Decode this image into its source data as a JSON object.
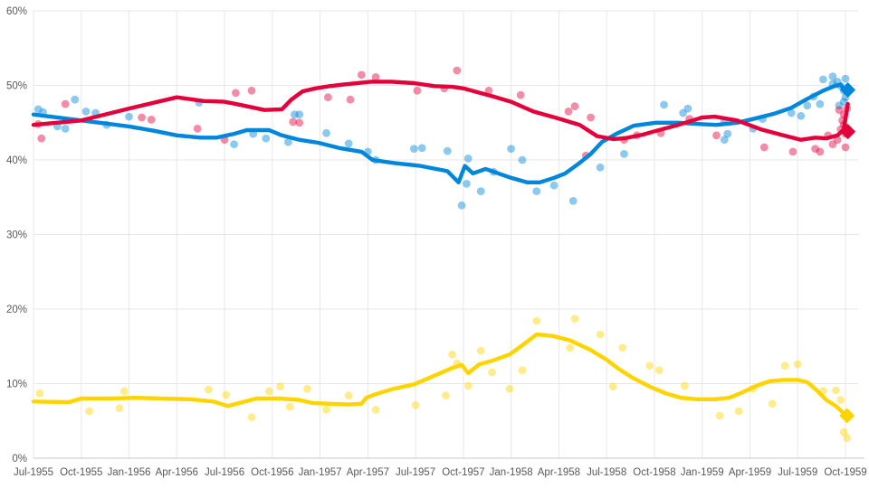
{
  "chart_data": {
    "type": "scatter",
    "title": "",
    "xlabel": "",
    "ylabel": "",
    "x_unit": "months_since_jul_1955",
    "x_range_months": [
      0,
      51
    ],
    "ylim": [
      0,
      60
    ],
    "grid": true,
    "legend": "none",
    "colors": {
      "background": "#ffffff",
      "gridline": "#e7e7e7",
      "axis_line": "#c9c9c9",
      "tick_label": "#595959",
      "blue": "#0087dc",
      "red": "#e4003b",
      "yellow": "#ffd400"
    },
    "y_ticks": [
      {
        "value": 0,
        "label": "0%"
      },
      {
        "value": 10,
        "label": "10%"
      },
      {
        "value": 20,
        "label": "20%"
      },
      {
        "value": 30,
        "label": "30%"
      },
      {
        "value": 40,
        "label": "40%"
      },
      {
        "value": 50,
        "label": "50%"
      },
      {
        "value": 60,
        "label": "60%"
      }
    ],
    "x_ticks": [
      {
        "month": 0,
        "label": "Jul-1955"
      },
      {
        "month": 3,
        "label": "Oct-1955"
      },
      {
        "month": 6,
        "label": "Jan-1956"
      },
      {
        "month": 9,
        "label": "Apr-1956"
      },
      {
        "month": 12,
        "label": "Jul-1956"
      },
      {
        "month": 15,
        "label": "Oct-1956"
      },
      {
        "month": 18,
        "label": "Jan-1957"
      },
      {
        "month": 21,
        "label": "Apr-1957"
      },
      {
        "month": 24,
        "label": "Jul-1957"
      },
      {
        "month": 27,
        "label": "Oct-1957"
      },
      {
        "month": 30,
        "label": "Jan-1958"
      },
      {
        "month": 33,
        "label": "Apr-1958"
      },
      {
        "month": 36,
        "label": "Jul-1958"
      },
      {
        "month": 39,
        "label": "Oct-1958"
      },
      {
        "month": 42,
        "label": "Jan-1959"
      },
      {
        "month": 45,
        "label": "Apr-1959"
      },
      {
        "month": 48,
        "label": "Jul-1959"
      },
      {
        "month": 51,
        "label": "Oct-1959"
      }
    ],
    "series": [
      {
        "name": "blue",
        "color": "#0087dc",
        "trend": [
          [
            0,
            46.1
          ],
          [
            3,
            45.3
          ],
          [
            6,
            44.5
          ],
          [
            7.6,
            43.9
          ],
          [
            9,
            43.3
          ],
          [
            10.5,
            43.0
          ],
          [
            11.5,
            43.0
          ],
          [
            12.6,
            43.5
          ],
          [
            13.4,
            44.0
          ],
          [
            14.8,
            44.0
          ],
          [
            15.6,
            43.3
          ],
          [
            16.7,
            42.7
          ],
          [
            17.9,
            42.3
          ],
          [
            19.2,
            41.6
          ],
          [
            20.6,
            41.1
          ],
          [
            21.3,
            40.0
          ],
          [
            22.6,
            39.6
          ],
          [
            24.3,
            39.2
          ],
          [
            26.0,
            38.5
          ],
          [
            26.7,
            37.0
          ],
          [
            27.1,
            39.2
          ],
          [
            27.6,
            38.2
          ],
          [
            28.4,
            38.8
          ],
          [
            29.2,
            38.2
          ],
          [
            30.0,
            37.6
          ],
          [
            31.0,
            37.0
          ],
          [
            31.8,
            37.0
          ],
          [
            32.7,
            37.6
          ],
          [
            33.4,
            38.2
          ],
          [
            34.3,
            39.6
          ],
          [
            35.0,
            40.8
          ],
          [
            35.7,
            42.4
          ],
          [
            36.6,
            43.5
          ],
          [
            37.7,
            44.6
          ],
          [
            39.1,
            45.0
          ],
          [
            40.5,
            45.0
          ],
          [
            42.0,
            44.8
          ],
          [
            42.9,
            44.7
          ],
          [
            44.2,
            45.0
          ],
          [
            45.4,
            45.6
          ],
          [
            46.5,
            46.2
          ],
          [
            47.6,
            47.0
          ],
          [
            48.6,
            48.2
          ],
          [
            49.6,
            49.3
          ],
          [
            50.3,
            49.9
          ],
          [
            50.7,
            50.1
          ],
          [
            50.9,
            49.5
          ],
          [
            51.1,
            49.7
          ]
        ],
        "polls": [
          [
            0.3,
            46.8
          ],
          [
            0.6,
            46.4
          ],
          [
            1.5,
            44.5
          ],
          [
            2.0,
            44.2
          ],
          [
            2.6,
            48.1
          ],
          [
            3.3,
            46.5
          ],
          [
            3.9,
            46.3
          ],
          [
            4.6,
            44.7
          ],
          [
            6.0,
            45.8
          ],
          [
            10.4,
            47.7
          ],
          [
            12.6,
            42.1
          ],
          [
            13.8,
            43.5
          ],
          [
            14.6,
            42.9
          ],
          [
            16.0,
            42.4
          ],
          [
            16.4,
            46.1
          ],
          [
            16.7,
            46.1
          ],
          [
            18.4,
            43.6
          ],
          [
            19.8,
            42.2
          ],
          [
            21.0,
            41.1
          ],
          [
            21.5,
            40.0
          ],
          [
            23.9,
            41.5
          ],
          [
            24.4,
            41.6
          ],
          [
            26.0,
            41.2
          ],
          [
            26.9,
            33.9
          ],
          [
            27.2,
            36.8
          ],
          [
            27.3,
            40.2
          ],
          [
            28.1,
            35.8
          ],
          [
            28.9,
            38.4
          ],
          [
            30.0,
            41.5
          ],
          [
            30.7,
            40.0
          ],
          [
            31.6,
            35.8
          ],
          [
            32.7,
            36.6
          ],
          [
            33.9,
            34.5
          ],
          [
            35.6,
            39.0
          ],
          [
            37.1,
            40.8
          ],
          [
            39.6,
            47.4
          ],
          [
            40.8,
            46.3
          ],
          [
            41.1,
            46.9
          ],
          [
            43.4,
            45.1
          ],
          [
            43.4,
            42.7
          ],
          [
            43.6,
            43.5
          ],
          [
            45.2,
            44.2
          ],
          [
            45.8,
            45.5
          ],
          [
            47.6,
            46.3
          ],
          [
            48.2,
            45.9
          ],
          [
            48.6,
            47.3
          ],
          [
            49.0,
            48.5
          ],
          [
            49.4,
            47.5
          ],
          [
            49.6,
            50.8
          ],
          [
            50.2,
            50.2
          ],
          [
            50.2,
            51.2
          ],
          [
            50.5,
            50.5
          ],
          [
            50.6,
            47.3
          ],
          [
            50.7,
            49.9
          ],
          [
            50.9,
            49.3
          ],
          [
            50.9,
            47.8
          ],
          [
            51.0,
            48.4
          ],
          [
            51.0,
            50.9
          ]
        ],
        "final_result": [
          51.15,
          49.4
        ]
      },
      {
        "name": "red",
        "color": "#e4003b",
        "trend": [
          [
            0,
            44.7
          ],
          [
            3,
            45.3
          ],
          [
            6,
            46.9
          ],
          [
            9,
            48.4
          ],
          [
            10.7,
            47.9
          ],
          [
            12,
            47.8
          ],
          [
            13.2,
            47.3
          ],
          [
            14.5,
            46.7
          ],
          [
            15.6,
            46.8
          ],
          [
            16.2,
            48.1
          ],
          [
            16.9,
            49.2
          ],
          [
            17.7,
            49.6
          ],
          [
            18.6,
            49.9
          ],
          [
            19.8,
            50.2
          ],
          [
            21.2,
            50.5
          ],
          [
            22.5,
            50.5
          ],
          [
            23.9,
            50.3
          ],
          [
            25.2,
            49.9
          ],
          [
            26.3,
            49.8
          ],
          [
            27.0,
            49.6
          ],
          [
            27.7,
            49.2
          ],
          [
            28.9,
            48.5
          ],
          [
            30.0,
            47.8
          ],
          [
            31.4,
            46.5
          ],
          [
            32.9,
            45.6
          ],
          [
            34.3,
            44.7
          ],
          [
            35.4,
            43.2
          ],
          [
            36.4,
            42.8
          ],
          [
            37.1,
            42.9
          ],
          [
            38.3,
            43.4
          ],
          [
            39.1,
            43.9
          ],
          [
            40.5,
            44.7
          ],
          [
            42.0,
            45.7
          ],
          [
            42.8,
            45.8
          ],
          [
            44.2,
            45.3
          ],
          [
            45.7,
            44.1
          ],
          [
            47.1,
            43.3
          ],
          [
            48.2,
            42.7
          ],
          [
            49.1,
            43.0
          ],
          [
            49.8,
            42.9
          ],
          [
            50.5,
            43.3
          ],
          [
            50.9,
            44.1
          ],
          [
            51.15,
            47.5
          ]
        ],
        "polls": [
          [
            0.3,
            44.8
          ],
          [
            0.5,
            42.9
          ],
          [
            2.0,
            47.5
          ],
          [
            6.8,
            45.7
          ],
          [
            7.4,
            45.4
          ],
          [
            10.3,
            44.2
          ],
          [
            12.0,
            42.7
          ],
          [
            12.7,
            49.0
          ],
          [
            13.7,
            49.3
          ],
          [
            16.3,
            45.1
          ],
          [
            16.7,
            45.0
          ],
          [
            18.5,
            48.4
          ],
          [
            19.9,
            48.1
          ],
          [
            20.6,
            51.4
          ],
          [
            21.5,
            51.1
          ],
          [
            24.1,
            49.3
          ],
          [
            25.8,
            49.6
          ],
          [
            26.6,
            52.0
          ],
          [
            28.6,
            49.3
          ],
          [
            30.6,
            48.7
          ],
          [
            33.6,
            46.5
          ],
          [
            34.0,
            47.2
          ],
          [
            34.7,
            40.6
          ],
          [
            35.0,
            45.7
          ],
          [
            37.1,
            42.7
          ],
          [
            37.9,
            43.3
          ],
          [
            39.4,
            43.6
          ],
          [
            41.2,
            45.5
          ],
          [
            42.9,
            43.3
          ],
          [
            45.9,
            41.7
          ],
          [
            47.7,
            41.1
          ],
          [
            49.1,
            41.5
          ],
          [
            49.4,
            41.1
          ],
          [
            49.9,
            43.3
          ],
          [
            50.2,
            42.1
          ],
          [
            50.5,
            42.7
          ],
          [
            50.6,
            46.7
          ],
          [
            50.7,
            44.1
          ],
          [
            50.8,
            45.3
          ],
          [
            50.9,
            46.1
          ],
          [
            50.9,
            44.7
          ],
          [
            51.0,
            43.5
          ],
          [
            51.0,
            41.7
          ],
          [
            51.1,
            46.9
          ]
        ],
        "final_result": [
          51.15,
          43.8
        ]
      },
      {
        "name": "yellow",
        "color": "#ffd400",
        "trend": [
          [
            0,
            7.6
          ],
          [
            2.2,
            7.5
          ],
          [
            3,
            8.0
          ],
          [
            4.7,
            8.0
          ],
          [
            6.4,
            8.1
          ],
          [
            8.1,
            8.0
          ],
          [
            9.8,
            7.9
          ],
          [
            11.3,
            7.6
          ],
          [
            12.2,
            7.0
          ],
          [
            13.1,
            7.5
          ],
          [
            14.0,
            8.0
          ],
          [
            15.5,
            8.0
          ],
          [
            16.7,
            7.8
          ],
          [
            17.5,
            7.4
          ],
          [
            18.6,
            7.3
          ],
          [
            19.8,
            7.2
          ],
          [
            20.6,
            7.3
          ],
          [
            20.9,
            8.1
          ],
          [
            21.5,
            8.6
          ],
          [
            22.6,
            9.3
          ],
          [
            23.9,
            9.9
          ],
          [
            25.1,
            11.0
          ],
          [
            26.3,
            12.1
          ],
          [
            26.9,
            12.5
          ],
          [
            27.3,
            11.4
          ],
          [
            28.0,
            12.6
          ],
          [
            28.7,
            13.0
          ],
          [
            29.9,
            13.9
          ],
          [
            30.8,
            15.3
          ],
          [
            31.6,
            16.6
          ],
          [
            32.6,
            16.4
          ],
          [
            33.7,
            15.8
          ],
          [
            35.0,
            14.5
          ],
          [
            36.0,
            13.2
          ],
          [
            36.8,
            11.9
          ],
          [
            37.7,
            10.7
          ],
          [
            38.7,
            9.6
          ],
          [
            39.7,
            8.7
          ],
          [
            40.7,
            8.1
          ],
          [
            41.7,
            7.9
          ],
          [
            42.8,
            7.9
          ],
          [
            43.7,
            8.1
          ],
          [
            44.5,
            8.8
          ],
          [
            45.4,
            9.7
          ],
          [
            46.2,
            10.3
          ],
          [
            47.1,
            10.5
          ],
          [
            48.0,
            10.5
          ],
          [
            48.6,
            10.2
          ],
          [
            49.2,
            9.1
          ],
          [
            49.8,
            7.8
          ],
          [
            50.4,
            7.0
          ],
          [
            50.8,
            6.2
          ],
          [
            51.0,
            5.7
          ]
        ],
        "polls": [
          [
            0.4,
            8.7
          ],
          [
            3.5,
            6.3
          ],
          [
            5.4,
            6.7
          ],
          [
            5.7,
            9.0
          ],
          [
            11.0,
            9.2
          ],
          [
            12.1,
            8.5
          ],
          [
            13.7,
            5.5
          ],
          [
            14.8,
            9.0
          ],
          [
            15.5,
            9.6
          ],
          [
            16.1,
            6.9
          ],
          [
            17.2,
            9.3
          ],
          [
            18.4,
            6.5
          ],
          [
            19.8,
            8.4
          ],
          [
            21.5,
            6.5
          ],
          [
            24.0,
            7.1
          ],
          [
            25.9,
            8.4
          ],
          [
            26.3,
            13.9
          ],
          [
            26.6,
            12.7
          ],
          [
            27.3,
            9.7
          ],
          [
            28.1,
            14.4
          ],
          [
            28.8,
            11.5
          ],
          [
            29.9,
            9.3
          ],
          [
            30.7,
            11.8
          ],
          [
            31.6,
            18.4
          ],
          [
            33.7,
            14.8
          ],
          [
            34.0,
            18.7
          ],
          [
            35.6,
            16.6
          ],
          [
            36.4,
            9.6
          ],
          [
            37.0,
            14.8
          ],
          [
            38.7,
            12.4
          ],
          [
            39.3,
            11.8
          ],
          [
            40.9,
            9.7
          ],
          [
            43.1,
            5.7
          ],
          [
            44.3,
            6.3
          ],
          [
            45.2,
            9.3
          ],
          [
            46.4,
            7.3
          ],
          [
            47.2,
            12.4
          ],
          [
            48.0,
            12.6
          ],
          [
            49.6,
            9.0
          ],
          [
            50.4,
            9.1
          ],
          [
            50.7,
            7.8
          ],
          [
            50.9,
            3.5
          ],
          [
            51.1,
            2.7
          ]
        ],
        "final_result": [
          51.1,
          5.7
        ]
      }
    ]
  }
}
